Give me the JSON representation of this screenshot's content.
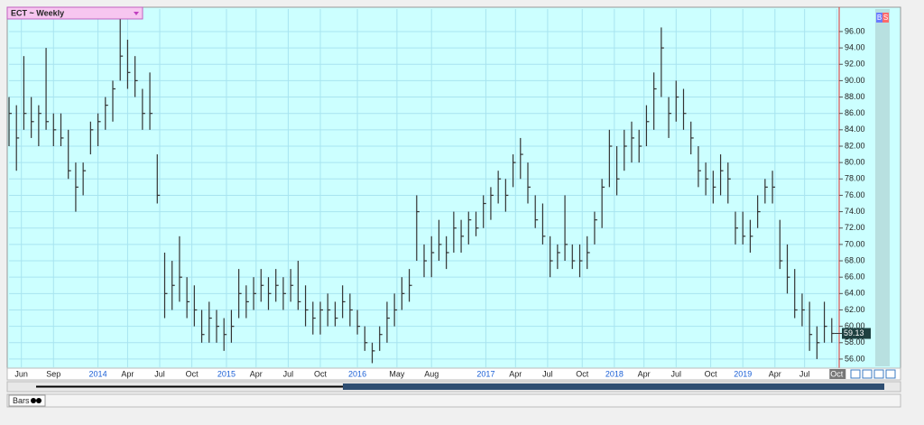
{
  "chart_data": {
    "type": "hlc",
    "title": "ECT ~ Weekly",
    "x": [
      0,
      3,
      6,
      9,
      12,
      15,
      18,
      21,
      24,
      27,
      30,
      33,
      36,
      39,
      42,
      45,
      48,
      51,
      54,
      57,
      60,
      63,
      66,
      69,
      72,
      75,
      78,
      81,
      84,
      87,
      90,
      93,
      96,
      99,
      102,
      105,
      108,
      111,
      114,
      117,
      120,
      123,
      126,
      129,
      132,
      135,
      138,
      141,
      144,
      147,
      150,
      153,
      156,
      159,
      162,
      165,
      168,
      171,
      174,
      177,
      180,
      183,
      186,
      189,
      192,
      195,
      198,
      201,
      204,
      207,
      210,
      213,
      216,
      219,
      222,
      225,
      228,
      231,
      234,
      237,
      240,
      243,
      246,
      249,
      252,
      255,
      258,
      261,
      264,
      267,
      270,
      273,
      276,
      279,
      282,
      285,
      288,
      291,
      294,
      297,
      300,
      303,
      306,
      309,
      312,
      315,
      318,
      321,
      324,
      327,
      330,
      333
    ],
    "high": [
      88,
      87,
      93,
      88,
      87,
      94,
      86,
      86,
      84,
      80,
      80,
      85,
      86,
      88,
      90,
      97.5,
      95,
      93,
      89,
      91,
      81,
      69,
      68,
      71,
      66,
      65,
      62,
      63,
      62,
      61,
      62,
      67,
      65,
      66,
      67,
      66,
      67,
      66,
      67,
      68,
      65,
      63,
      63,
      64,
      63,
      65,
      64,
      62,
      60,
      58,
      60,
      63,
      64,
      66,
      67,
      76,
      70,
      71,
      73,
      71,
      74,
      73,
      74,
      74,
      76,
      77,
      79,
      78,
      81,
      83,
      80,
      76,
      75,
      71,
      70,
      76,
      70,
      70,
      71,
      74,
      78,
      84,
      82,
      84,
      85,
      84,
      87,
      91,
      96.5,
      88,
      90,
      89,
      85,
      82,
      80,
      79,
      81,
      80,
      74,
      74,
      73,
      76,
      78,
      79,
      73,
      70,
      67,
      64,
      63,
      60,
      63,
      61
    ],
    "low": [
      82,
      79,
      84,
      83,
      82,
      84,
      82,
      82,
      78,
      74,
      76,
      81,
      82,
      84,
      85,
      90,
      89,
      88,
      84,
      84,
      75,
      61,
      62,
      63,
      61,
      60,
      58,
      58,
      58,
      57,
      58,
      61,
      61,
      62,
      63,
      62,
      63,
      62,
      63,
      62,
      60,
      59,
      59,
      60,
      60,
      61,
      60,
      59,
      57,
      55.5,
      57,
      58,
      60,
      62,
      63,
      68,
      66,
      66,
      68,
      67,
      69,
      69,
      70,
      71,
      72,
      73,
      75,
      74,
      77,
      78,
      75,
      72,
      70,
      66,
      67,
      68,
      67,
      66,
      67,
      70,
      72,
      77,
      76,
      79,
      80,
      80,
      82,
      84,
      88,
      83,
      85,
      84,
      81,
      77,
      76,
      75,
      76,
      75,
      70,
      70,
      69,
      72,
      75,
      75,
      67,
      64,
      61,
      60,
      57,
      56,
      58,
      58
    ],
    "close": [
      86,
      83,
      86,
      85,
      86,
      85,
      84,
      83,
      79,
      77,
      79,
      84,
      85,
      87,
      89,
      93,
      91,
      90,
      86,
      86,
      76,
      64,
      65,
      66,
      63,
      62,
      59,
      61,
      60,
      59,
      60,
      64,
      63,
      64,
      65,
      64,
      65,
      64,
      65,
      63,
      62,
      61,
      62,
      62,
      61,
      63,
      62,
      60,
      58,
      57,
      59,
      61,
      62,
      64,
      65,
      74,
      68,
      69,
      70,
      69,
      72,
      71,
      73,
      72,
      75,
      76,
      78,
      76,
      80,
      81,
      77,
      73,
      71,
      68,
      69,
      70,
      68,
      68,
      69,
      73,
      77,
      82,
      78,
      82,
      83,
      82,
      85,
      89,
      94,
      86,
      88,
      86,
      83,
      79,
      78,
      77,
      79,
      78,
      72,
      71,
      71,
      74,
      77,
      77,
      68,
      66,
      62,
      62,
      59,
      58,
      60,
      59.13
    ],
    "color": "#333333",
    "xlim": [
      0,
      336
    ],
    "xticks": [
      {
        "value": 5,
        "label": "Jun"
      },
      {
        "value": 18,
        "label": "Sep"
      },
      {
        "value": 36,
        "label": "2014"
      },
      {
        "value": 48,
        "label": "Apr"
      },
      {
        "value": 61,
        "label": "Jul"
      },
      {
        "value": 74,
        "label": "Oct"
      },
      {
        "value": 88,
        "label": "2015"
      },
      {
        "value": 100,
        "label": "Apr"
      },
      {
        "value": 113,
        "label": "Jul"
      },
      {
        "value": 126,
        "label": "Oct"
      },
      {
        "value": 141,
        "label": "2016"
      },
      {
        "value": 157,
        "label": "May"
      },
      {
        "value": 171,
        "label": "Aug"
      },
      {
        "value": 193,
        "label": "2017"
      },
      {
        "value": 205,
        "label": "Apr"
      },
      {
        "value": 218,
        "label": "Jul"
      },
      {
        "value": 232,
        "label": "Oct"
      },
      {
        "value": 245,
        "label": "2018"
      },
      {
        "value": 257,
        "label": "Apr"
      },
      {
        "value": 270,
        "label": "Jul"
      },
      {
        "value": 284,
        "label": "Oct"
      },
      {
        "value": 297,
        "label": "2019"
      },
      {
        "value": 310,
        "label": "Apr"
      },
      {
        "value": 322,
        "label": "Jul"
      },
      {
        "value": 335,
        "label": "Oct"
      }
    ],
    "ylim": [
      55,
      98.75
    ],
    "yticks": [
      {
        "value": 56,
        "label": "56.00"
      },
      {
        "value": 58,
        "label": "58.00"
      },
      {
        "value": 60,
        "label": "60.00"
      },
      {
        "value": 62,
        "label": "62.00"
      },
      {
        "value": 64,
        "label": "64.00"
      },
      {
        "value": 66,
        "label": "66.00"
      },
      {
        "value": 68,
        "label": "68.00"
      },
      {
        "value": 70,
        "label": "70.00"
      },
      {
        "value": 72,
        "label": "72.00"
      },
      {
        "value": 74,
        "label": "74.00"
      },
      {
        "value": 76,
        "label": "76.00"
      },
      {
        "value": 78,
        "label": "78.00"
      },
      {
        "value": 80,
        "label": "80.00"
      },
      {
        "value": 82,
        "label": "82.00"
      },
      {
        "value": 84,
        "label": "84.00"
      },
      {
        "value": 86,
        "label": "86.00"
      },
      {
        "value": 88,
        "label": "88.00"
      },
      {
        "value": 90,
        "label": "90.00"
      },
      {
        "value": 92,
        "label": "92.00"
      },
      {
        "value": 94,
        "label": "94.00"
      },
      {
        "value": 96,
        "label": "96.00"
      }
    ],
    "grid": true
  },
  "ui": {
    "buy": "B",
    "sell": "S",
    "tab": "Bars"
  }
}
